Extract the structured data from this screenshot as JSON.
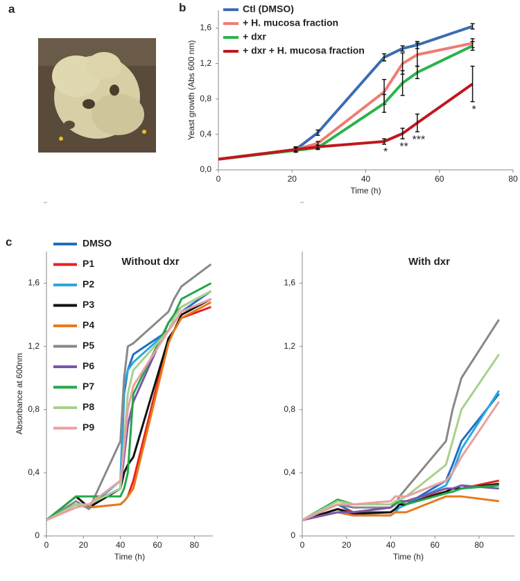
{
  "panels": [
    "a",
    "b",
    "c"
  ],
  "chart_data": [
    {
      "type": "line",
      "x_label": "Time (h)",
      "y_label": "Yeast  growth (Abs 600 nm)",
      "x": [
        0,
        21,
        27,
        45,
        50,
        54,
        69
      ],
      "xlim": [
        0,
        80
      ],
      "xticks": [
        0,
        20,
        40,
        60,
        80
      ],
      "ylim": [
        0,
        1.8
      ],
      "yticks": [
        {
          "value": 0,
          "label": "0,0"
        },
        {
          "value": 0.4,
          "label": "0,4"
        },
        {
          "value": 0.8,
          "label": "0,8"
        },
        {
          "value": 1.2,
          "label": "1,2"
        },
        {
          "value": 1.6,
          "label": "1,6"
        }
      ],
      "series": [
        {
          "name": "Ctl (DMSO)",
          "color": "#3d6cb0",
          "values": [
            0.12,
            0.23,
            0.42,
            1.27,
            1.37,
            1.41,
            1.62
          ],
          "errors": [
            0,
            0.03,
            0.03,
            0.04,
            0.03,
            0.04,
            0.03
          ]
        },
        {
          "name": "+ H. mucosa fraction",
          "color": "#f07b73",
          "values": [
            0.12,
            0.23,
            0.3,
            0.88,
            1.2,
            1.3,
            1.43
          ],
          "errors": [
            0,
            0.02,
            0.02,
            0.14,
            0.12,
            0.13,
            0.05
          ]
        },
        {
          "name": "+ dxr",
          "color": "#2cb34b",
          "values": [
            0.12,
            0.22,
            0.25,
            0.75,
            0.98,
            1.1,
            1.4
          ],
          "errors": [
            0,
            0.02,
            0.02,
            0.1,
            0.14,
            0.07,
            0.05
          ]
        },
        {
          "name": "+ dxr + H. mucosa fraction",
          "color": "#c0171e",
          "values": [
            0.12,
            0.23,
            0.26,
            0.32,
            0.41,
            0.53,
            0.97
          ],
          "errors": [
            0,
            0.02,
            0.02,
            0.03,
            0.06,
            0.1,
            0.2
          ]
        }
      ],
      "annotations": [
        "*",
        "**",
        "***",
        "*"
      ]
    },
    {
      "type": "line",
      "title": "Without dxr",
      "x_label": "Time (h)",
      "y_label": "Absorbance at 600nm",
      "x": [
        0,
        16,
        23,
        40,
        42,
        44,
        47,
        66,
        69,
        73,
        89
      ],
      "xlim": [
        0,
        90
      ],
      "xticks": [
        0,
        20,
        40,
        60,
        80
      ],
      "ylim": [
        0,
        1.8
      ],
      "yticks": [
        0,
        {
          "value": 0.4,
          "label": "0,4"
        },
        {
          "value": 0.8,
          "label": "0,8"
        },
        {
          "value": 1.2,
          "label": "1,2"
        },
        {
          "value": 1.6,
          "label": "1,6"
        }
      ],
      "series": [
        {
          "name": "DMSO",
          "color": "#1f6fbf",
          "values": [
            0.1,
            0.2,
            0.2,
            0.3,
            0.9,
            1.05,
            1.15,
            1.3,
            1.35,
            1.42,
            1.55
          ]
        },
        {
          "name": "P1",
          "color": "#e8201e",
          "values": [
            0.1,
            0.2,
            0.18,
            0.2,
            0.22,
            0.25,
            0.35,
            1.25,
            1.3,
            1.38,
            1.45
          ]
        },
        {
          "name": "P2",
          "color": "#2aa8e0",
          "values": [
            0.1,
            0.2,
            0.18,
            0.35,
            0.95,
            1.05,
            1.1,
            1.3,
            1.35,
            1.42,
            1.5
          ]
        },
        {
          "name": "P3",
          "color": "#111111",
          "values": [
            0.1,
            0.25,
            0.18,
            0.3,
            0.4,
            0.45,
            0.5,
            1.25,
            1.3,
            1.4,
            1.5
          ]
        },
        {
          "name": "P4",
          "color": "#e87a1c",
          "values": [
            0.1,
            0.2,
            0.18,
            0.2,
            0.22,
            0.25,
            0.3,
            1.22,
            1.3,
            1.38,
            1.48
          ]
        },
        {
          "name": "P5",
          "color": "#888888",
          "values": [
            0.1,
            0.22,
            0.17,
            0.6,
            1.0,
            1.2,
            1.22,
            1.42,
            1.5,
            1.58,
            1.72
          ]
        },
        {
          "name": "P6",
          "color": "#7a55a8",
          "values": [
            0.1,
            0.2,
            0.2,
            0.3,
            0.5,
            0.7,
            0.85,
            1.35,
            1.4,
            1.45,
            1.55
          ]
        },
        {
          "name": "P7",
          "color": "#22a84a",
          "values": [
            0.1,
            0.25,
            0.25,
            0.25,
            0.3,
            0.4,
            0.9,
            1.35,
            1.4,
            1.5,
            1.6
          ]
        },
        {
          "name": "P8",
          "color": "#a8d08d",
          "values": [
            0.1,
            0.2,
            0.2,
            0.3,
            0.6,
            0.9,
            1.05,
            1.3,
            1.38,
            1.45,
            1.55
          ]
        },
        {
          "name": "P9",
          "color": "#e8a0a0",
          "values": [
            0.1,
            0.18,
            0.2,
            0.35,
            0.55,
            0.8,
            0.95,
            1.3,
            1.35,
            1.42,
            1.5
          ]
        }
      ]
    },
    {
      "type": "line",
      "title": "With dxr",
      "x_label": "Time (h)",
      "x": [
        0,
        16,
        23,
        40,
        42,
        44,
        47,
        65,
        68,
        72,
        89
      ],
      "xlim": [
        0,
        96
      ],
      "xticks": [
        0,
        20,
        40,
        60,
        80
      ],
      "ylim": [
        0,
        1.8
      ],
      "yticks": [
        0,
        {
          "value": 0.4,
          "label": "0,4"
        },
        {
          "value": 0.8,
          "label": "0,8"
        },
        {
          "value": 1.2,
          "label": "1,2"
        },
        {
          "value": 1.6,
          "label": "1,6"
        }
      ],
      "series": [
        {
          "color": "#1f6fbf",
          "values": [
            0.1,
            0.2,
            0.15,
            0.15,
            0.17,
            0.18,
            0.2,
            0.35,
            0.45,
            0.6,
            0.9
          ]
        },
        {
          "color": "#e8201e",
          "values": [
            0.1,
            0.17,
            0.15,
            0.18,
            0.2,
            0.22,
            0.22,
            0.28,
            0.3,
            0.3,
            0.35
          ]
        },
        {
          "color": "#2aa8e0",
          "values": [
            0.1,
            0.15,
            0.13,
            0.13,
            0.15,
            0.18,
            0.2,
            0.32,
            0.4,
            0.55,
            0.92
          ]
        },
        {
          "color": "#111111",
          "values": [
            0.1,
            0.17,
            0.14,
            0.15,
            0.17,
            0.2,
            0.2,
            0.28,
            0.3,
            0.3,
            0.33
          ]
        },
        {
          "color": "#e87a1c",
          "values": [
            0.1,
            0.15,
            0.13,
            0.13,
            0.15,
            0.15,
            0.15,
            0.25,
            0.25,
            0.25,
            0.22
          ]
        },
        {
          "color": "#888888",
          "values": [
            0.1,
            0.2,
            0.18,
            0.18,
            0.2,
            0.25,
            0.3,
            0.6,
            0.8,
            1.0,
            1.37
          ]
        },
        {
          "color": "#7a55a8",
          "values": [
            0.1,
            0.15,
            0.15,
            0.18,
            0.2,
            0.22,
            0.22,
            0.3,
            0.3,
            0.32,
            0.3
          ]
        },
        {
          "color": "#22a84a",
          "values": [
            0.1,
            0.23,
            0.2,
            0.2,
            0.2,
            0.22,
            0.2,
            0.27,
            0.28,
            0.3,
            0.32
          ]
        },
        {
          "color": "#a8d08d",
          "values": [
            0.1,
            0.22,
            0.2,
            0.2,
            0.22,
            0.23,
            0.25,
            0.45,
            0.6,
            0.8,
            1.15
          ]
        },
        {
          "color": "#e8a0a0",
          "values": [
            0.1,
            0.2,
            0.2,
            0.22,
            0.25,
            0.25,
            0.25,
            0.35,
            0.4,
            0.5,
            0.85
          ]
        }
      ]
    }
  ]
}
